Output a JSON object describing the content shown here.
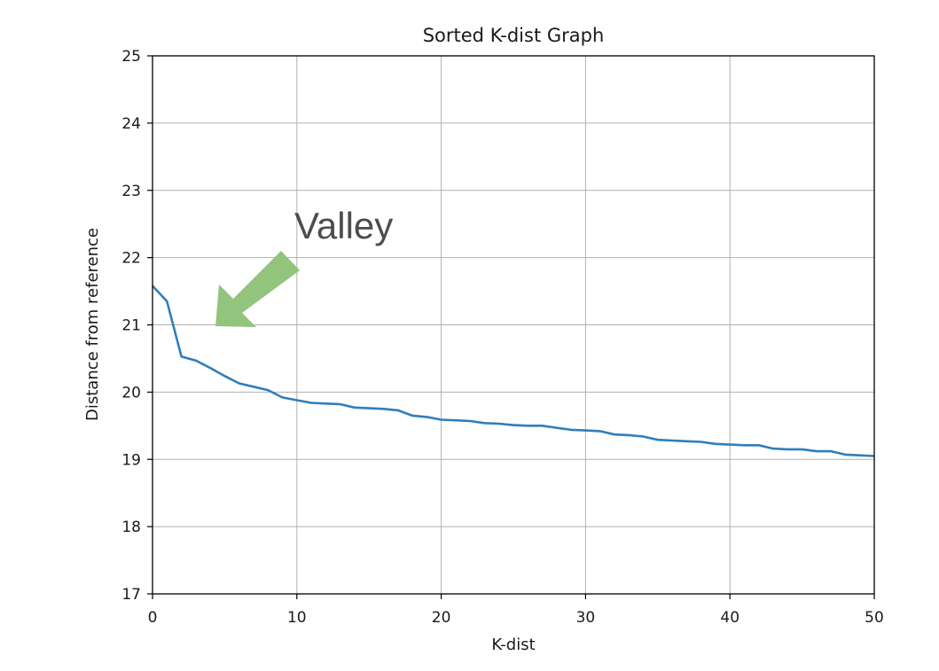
{
  "chart_data": {
    "type": "line",
    "title": "Sorted K-dist Graph",
    "xlabel": "K-dist",
    "ylabel": "Distance from reference",
    "xlim": [
      0,
      50
    ],
    "ylim": [
      17,
      25
    ],
    "xticks": [
      0,
      10,
      20,
      30,
      40,
      50
    ],
    "yticks": [
      17,
      18,
      19,
      20,
      21,
      22,
      23,
      24,
      25
    ],
    "grid": true,
    "series": [
      {
        "color": "#2f7ebc",
        "x": [
          0,
          1,
          2,
          3,
          4,
          5,
          6,
          7,
          8,
          9,
          10,
          11,
          12,
          13,
          14,
          15,
          16,
          17,
          18,
          19,
          20,
          21,
          22,
          23,
          24,
          25,
          26,
          27,
          28,
          29,
          30,
          31,
          32,
          33,
          34,
          35,
          36,
          37,
          38,
          39,
          40,
          41,
          42,
          43,
          44,
          45,
          46,
          47,
          48,
          49,
          50
        ],
        "y": [
          21.58,
          21.35,
          20.53,
          20.47,
          20.36,
          20.24,
          20.13,
          20.08,
          20.03,
          19.92,
          19.88,
          19.84,
          19.83,
          19.82,
          19.77,
          19.76,
          19.75,
          19.73,
          19.65,
          19.63,
          19.59,
          19.58,
          19.57,
          19.54,
          19.53,
          19.51,
          19.5,
          19.5,
          19.47,
          19.44,
          19.43,
          19.42,
          19.37,
          19.36,
          19.34,
          19.29,
          19.28,
          19.27,
          19.26,
          19.23,
          19.22,
          19.21,
          19.21,
          19.16,
          19.15,
          19.15,
          19.12,
          19.12,
          19.07,
          19.06,
          19.05
        ]
      }
    ],
    "annotation": {
      "text": "Valley",
      "arrow_color": "#93c47d"
    }
  }
}
